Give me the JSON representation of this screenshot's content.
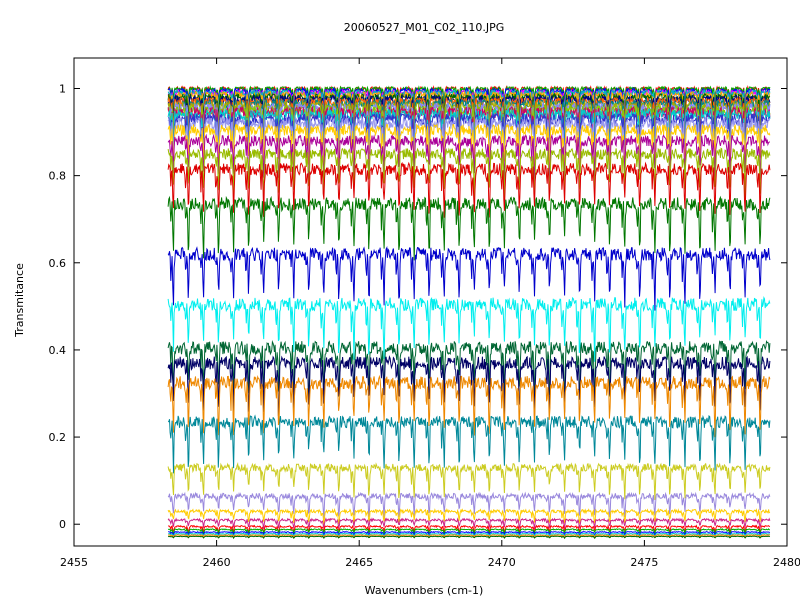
{
  "chart_data": {
    "type": "line",
    "title": "20060527_M01_C02_110.JPG",
    "xlabel": "Wavenumbers (cm-1)",
    "ylabel": "Transmitance",
    "xlim": [
      2455,
      2480
    ],
    "ylim": [
      -0.05,
      1.07
    ],
    "x_ticks": [
      2455,
      2460,
      2465,
      2470,
      2475,
      2480
    ],
    "y_ticks": [
      0,
      0.2,
      0.4,
      0.6,
      0.8,
      1
    ],
    "x_tick_labels": [
      "2455",
      "2460",
      "2465",
      "2470",
      "2475",
      "2480"
    ],
    "y_tick_labels": [
      "0",
      "0.2",
      "0.4",
      "0.6",
      "0.8",
      "1"
    ],
    "x_data_range": [
      2458.3,
      2479.4
    ],
    "absorption_lines": 40,
    "grid": false,
    "legend": "none",
    "series": [
      {
        "baseline": 1.0,
        "depth": 0.03,
        "color": "#ff0000"
      },
      {
        "baseline": 1.0,
        "depth": 0.03,
        "color": "#00aa00"
      },
      {
        "baseline": 0.995,
        "depth": 0.04,
        "color": "#0000ff"
      },
      {
        "baseline": 0.99,
        "depth": 0.05,
        "color": "#ff00ff"
      },
      {
        "baseline": 0.99,
        "depth": 0.05,
        "color": "#00bbbb"
      },
      {
        "baseline": 0.985,
        "depth": 0.06,
        "color": "#ffaa00"
      },
      {
        "baseline": 0.98,
        "depth": 0.06,
        "color": "#006600"
      },
      {
        "baseline": 0.975,
        "depth": 0.07,
        "color": "#000088"
      },
      {
        "baseline": 0.97,
        "depth": 0.07,
        "color": "#ff6600"
      },
      {
        "baseline": 0.965,
        "depth": 0.08,
        "color": "#008888"
      },
      {
        "baseline": 0.96,
        "depth": 0.08,
        "color": "#aaaa00"
      },
      {
        "baseline": 0.955,
        "depth": 0.09,
        "color": "#8888ff"
      },
      {
        "baseline": 0.95,
        "depth": 0.09,
        "color": "#88cc00"
      },
      {
        "baseline": 0.945,
        "depth": 0.1,
        "color": "#cc0066"
      },
      {
        "baseline": 0.94,
        "depth": 0.1,
        "color": "#00cccc"
      },
      {
        "baseline": 0.93,
        "depth": 0.1,
        "color": "#3333cc"
      },
      {
        "baseline": 0.92,
        "depth": 0.1,
        "color": "#9999ee"
      },
      {
        "baseline": 0.905,
        "depth": 0.1,
        "color": "#ffcc00"
      },
      {
        "baseline": 0.88,
        "depth": 0.1,
        "color": "#aa0099"
      },
      {
        "baseline": 0.85,
        "depth": 0.1,
        "color": "#99bb00"
      },
      {
        "baseline": 0.815,
        "depth": 0.11,
        "color": "#dd0000"
      },
      {
        "baseline": 0.735,
        "depth": 0.12,
        "color": "#007700"
      },
      {
        "baseline": 0.62,
        "depth": 0.12,
        "color": "#0000cc"
      },
      {
        "baseline": 0.505,
        "depth": 0.12,
        "color": "#00eeee"
      },
      {
        "baseline": 0.405,
        "depth": 0.12,
        "color": "#006633"
      },
      {
        "baseline": 0.37,
        "depth": 0.12,
        "color": "#000066"
      },
      {
        "baseline": 0.325,
        "depth": 0.12,
        "color": "#ee8800"
      },
      {
        "baseline": 0.235,
        "depth": 0.11,
        "color": "#008899"
      },
      {
        "baseline": 0.13,
        "depth": 0.07,
        "color": "#cccc22"
      },
      {
        "baseline": 0.065,
        "depth": 0.05,
        "color": "#9988dd"
      },
      {
        "baseline": 0.03,
        "depth": 0.03,
        "color": "#ffcc00"
      },
      {
        "baseline": 0.01,
        "depth": 0.02,
        "color": "#cc2288"
      },
      {
        "baseline": -0.005,
        "depth": 0.015,
        "color": "#ff0000"
      },
      {
        "baseline": -0.012,
        "depth": 0.01,
        "color": "#00aa00"
      },
      {
        "baseline": -0.018,
        "depth": 0.008,
        "color": "#0000ff"
      },
      {
        "baseline": -0.022,
        "depth": 0.006,
        "color": "#00cccc"
      },
      {
        "baseline": -0.025,
        "depth": 0.005,
        "color": "#ff8800"
      },
      {
        "baseline": -0.028,
        "depth": 0.004,
        "color": "#006600"
      }
    ]
  }
}
